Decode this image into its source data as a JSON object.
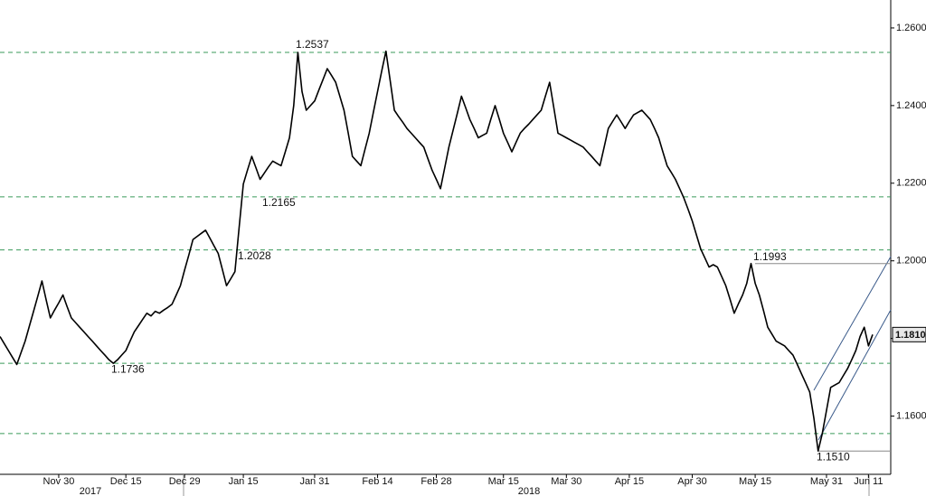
{
  "chart_data": {
    "type": "line",
    "color": "#000000",
    "categories": [
      null,
      null,
      null,
      null,
      null,
      null,
      null,
      null,
      null,
      null,
      null,
      null,
      null,
      null,
      "Nov 30",
      null,
      null,
      null,
      null,
      null,
      null,
      null,
      null,
      null,
      null,
      null,
      null,
      null,
      null,
      null,
      "Dec 15",
      null,
      null,
      null,
      null,
      null,
      null,
      null,
      null,
      null,
      null,
      null,
      null,
      null,
      "Dec 29",
      null,
      null,
      null,
      null,
      null,
      null,
      null,
      null,
      null,
      null,
      null,
      null,
      null,
      "Jan 15",
      null,
      null,
      null,
      null,
      null,
      null,
      null,
      null,
      null,
      null,
      null,
      null,
      null,
      null,
      null,
      null,
      "Jan 31",
      null,
      null,
      null,
      null,
      null,
      null,
      null,
      null,
      null,
      null,
      null,
      null,
      null,
      null,
      "Feb 14",
      null,
      null,
      null,
      null,
      null,
      null,
      null,
      null,
      null,
      null,
      null,
      null,
      null,
      "Feb 28",
      null,
      null,
      null,
      null,
      null,
      null,
      null,
      null,
      null,
      null,
      null,
      null,
      null,
      null,
      null,
      "Mar 15",
      null,
      null,
      null,
      null,
      null,
      null,
      null,
      null,
      null,
      null,
      null,
      null,
      null,
      null,
      "Mar 30",
      null,
      null,
      null,
      null,
      null,
      null,
      null,
      null,
      null,
      null,
      null,
      null,
      null,
      null,
      "Apr 15",
      null,
      null,
      null,
      null,
      null,
      null,
      null,
      null,
      null,
      null,
      null,
      null,
      null,
      null,
      "Apr 30",
      null,
      null,
      null,
      null,
      null,
      null,
      null,
      null,
      null,
      null,
      null,
      null,
      null,
      null,
      "May 15",
      null,
      null,
      null,
      null,
      null,
      null,
      null,
      null,
      null,
      null,
      null,
      null,
      null,
      null,
      null,
      null,
      "May 31",
      null,
      null,
      null,
      null,
      null,
      null,
      null,
      null,
      null,
      "Jun 11",
      null
    ],
    "values": [
      1.1805,
      1.1787,
      1.1769,
      1.1751,
      1.1733,
      1.1763,
      1.1793,
      1.1832,
      1.187,
      1.1909,
      1.1948,
      1.19,
      1.1853,
      1.1873,
      1.1892,
      1.1912,
      1.1882,
      1.1853,
      1.1841,
      1.1829,
      1.1817,
      1.1805,
      1.1793,
      1.1781,
      1.1769,
      1.1757,
      1.1745,
      1.1736,
      1.1745,
      1.1757,
      1.1769,
      1.1793,
      1.1817,
      1.1833,
      1.1849,
      1.1865,
      1.1858,
      1.187,
      1.1865,
      1.1873,
      1.188,
      1.1888,
      1.1912,
      1.1936,
      1.1976,
      1.2015,
      1.2055,
      1.2063,
      1.2071,
      1.2079,
      1.2059,
      1.2039,
      1.2019,
      1.1978,
      1.1936,
      1.1954,
      1.1972,
      1.2085,
      1.2198,
      1.2234,
      1.2269,
      1.224,
      1.221,
      1.2226,
      1.2242,
      1.2257,
      1.2251,
      1.2245,
      1.2281,
      1.2317,
      1.24,
      1.2537,
      1.2436,
      1.2388,
      1.24,
      1.2412,
      1.244,
      1.2467,
      1.2495,
      1.2478,
      1.246,
      1.2424,
      1.2388,
      1.2329,
      1.2269,
      1.2257,
      1.2245,
      1.2287,
      1.2329,
      1.2383,
      1.2436,
      1.249,
      1.254,
      1.2464,
      1.2388,
      1.2372,
      1.2357,
      1.2341,
      1.2329,
      1.2317,
      1.2305,
      1.2293,
      1.2263,
      1.2233,
      1.221,
      1.2186,
      1.224,
      1.2293,
      1.2337,
      1.238,
      1.2424,
      1.2394,
      1.2364,
      1.2341,
      1.2317,
      1.2323,
      1.2329,
      1.2365,
      1.24,
      1.2365,
      1.2329,
      1.2305,
      1.2281,
      1.2305,
      1.2329,
      1.2341,
      1.2352,
      1.2364,
      1.2376,
      1.2388,
      1.2424,
      1.246,
      1.2395,
      1.2329,
      1.2323,
      1.2317,
      1.2311,
      1.2305,
      1.2299,
      1.2293,
      1.2281,
      1.2269,
      1.2257,
      1.2245,
      1.2293,
      1.2341,
      1.2359,
      1.2376,
      1.2359,
      1.2341,
      1.2359,
      1.2376,
      1.2382,
      1.2388,
      1.2376,
      1.2364,
      1.2341,
      1.2317,
      1.2281,
      1.2245,
      1.2228,
      1.221,
      1.2186,
      1.2162,
      1.2133,
      1.2103,
      1.2067,
      1.2031,
      1.2008,
      1.1984,
      1.199,
      1.1984,
      1.196,
      1.1936,
      1.1901,
      1.1865,
      1.1889,
      1.1912,
      1.1942,
      1.1993,
      1.1942,
      1.1912,
      1.1871,
      1.1829,
      1.1811,
      1.1793,
      1.1787,
      1.1781,
      1.1769,
      1.1757,
      1.1734,
      1.171,
      1.1686,
      1.1662,
      1.1595,
      1.151,
      1.1555,
      1.1615,
      1.1674,
      1.168,
      1.1686,
      1.1704,
      1.1722,
      1.1745,
      1.1769,
      1.1805,
      1.1829,
      1.1781,
      1.181
    ],
    "year_labels": [
      "2017",
      "2018"
    ],
    "ylim": [
      1.145,
      1.2672
    ],
    "yticks": [
      {
        "value": 1.16,
        "label": "1.1600"
      },
      {
        "value": 1.18,
        "label": "1.1800"
      },
      {
        "value": 1.2,
        "label": "1.2000"
      },
      {
        "value": 1.22,
        "label": "1.2200"
      },
      {
        "value": 1.24,
        "label": "1.2400"
      },
      {
        "value": 1.26,
        "label": "1.2600"
      }
    ],
    "levels": [
      {
        "value": 1.2537,
        "label": "1.2537",
        "style": "dashed"
      },
      {
        "value": 1.2165,
        "label": "1.2165",
        "style": "dashed"
      },
      {
        "value": 1.2028,
        "label": "1.2028",
        "style": "dashed"
      },
      {
        "value": 1.1736,
        "label": "1.1736",
        "style": "dashed"
      },
      {
        "value": 1.1555,
        "style": "dashed"
      },
      {
        "value": 1.1993,
        "label": "1.1993",
        "style": "solid"
      },
      {
        "value": 1.151,
        "label": "1.1510",
        "style": "solid"
      }
    ],
    "last_value": {
      "value": 1.181,
      "label": "1.1810"
    }
  }
}
